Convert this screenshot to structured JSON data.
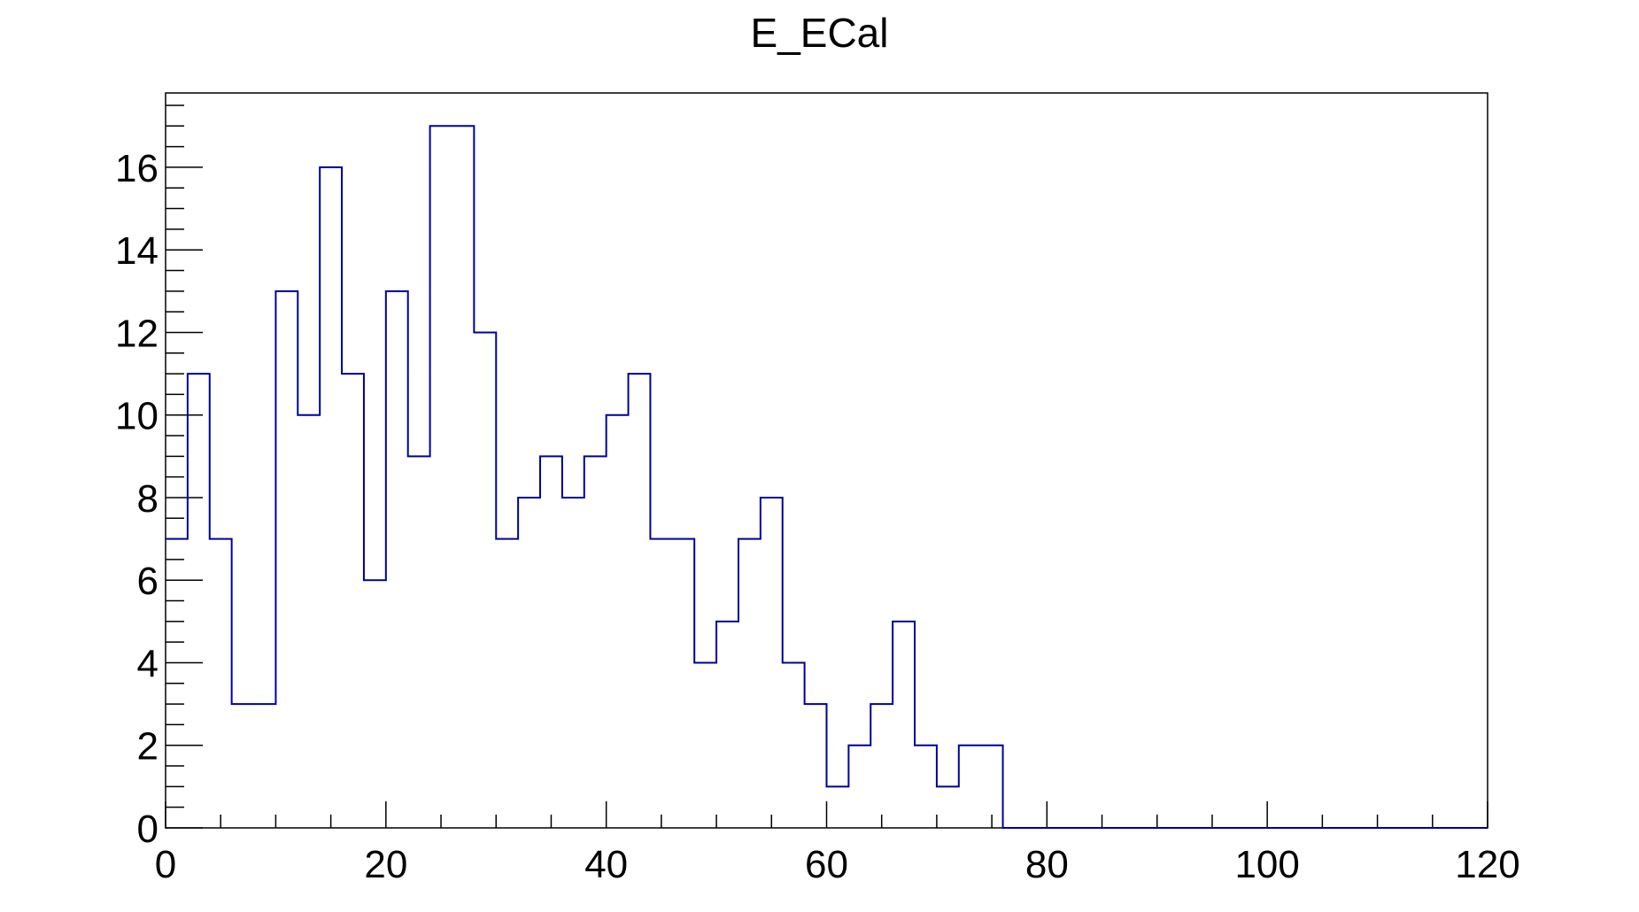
{
  "chart_data": {
    "type": "histogram",
    "title": "E_ECal",
    "xlabel": "",
    "ylabel": "",
    "xlim": [
      0,
      120
    ],
    "ylim": [
      0,
      17.8
    ],
    "bin_width": 2,
    "bin_start": 0,
    "values": [
      7,
      11,
      7,
      3,
      3,
      13,
      10,
      16,
      11,
      6,
      13,
      9,
      17,
      17,
      12,
      7,
      8,
      9,
      8,
      9,
      10,
      11,
      7,
      7,
      4,
      5,
      7,
      8,
      4,
      3,
      1,
      2,
      3,
      5,
      2,
      1,
      2,
      2,
      0,
      0,
      0,
      0,
      0,
      0,
      0,
      0,
      0,
      0,
      0,
      0,
      0,
      0,
      0,
      0,
      0,
      0,
      0,
      0,
      0,
      0
    ],
    "x_ticks": [
      "0",
      "20",
      "40",
      "60",
      "80",
      "100",
      "120"
    ],
    "y_ticks": [
      "0",
      "2",
      "4",
      "6",
      "8",
      "10",
      "12",
      "14",
      "16"
    ],
    "grid": false,
    "line_color": "#000099"
  }
}
